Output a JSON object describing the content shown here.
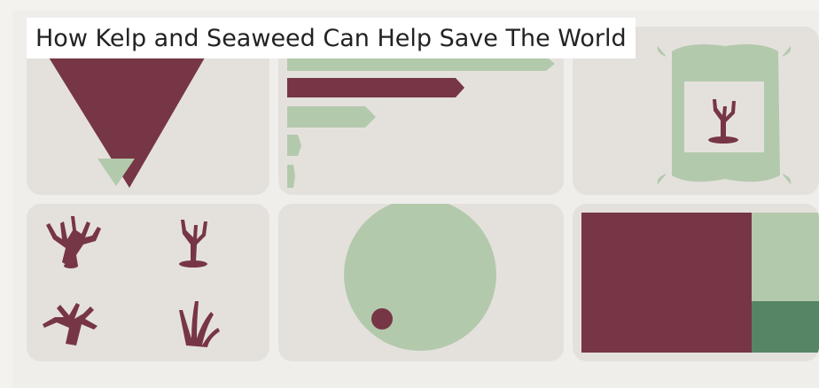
{
  "title": "How Kelp and Seaweed Can Help Save The World",
  "colors": {
    "maroon": "#773645",
    "light_green": "#b3c9ac",
    "dark_green": "#558565",
    "tile_bg": "#e4e1dd",
    "background": "#efeeeb"
  },
  "panels": {
    "proportion_triangles": {
      "type": "nested-triangles"
    },
    "bar_chart": {
      "type": "bar",
      "series_colors": [
        "light_green",
        "maroon",
        "light_green",
        "light_green",
        "light_green"
      ]
    },
    "seaweed_bag": {
      "icon": "coral-icon"
    },
    "seaweed_species": {
      "icons": [
        "coral-icon",
        "coral-icon",
        "coral-icon",
        "seaweed-icon"
      ]
    },
    "circle_comparison": {
      "type": "bubble"
    },
    "area_blocks": {
      "type": "treemap"
    }
  }
}
